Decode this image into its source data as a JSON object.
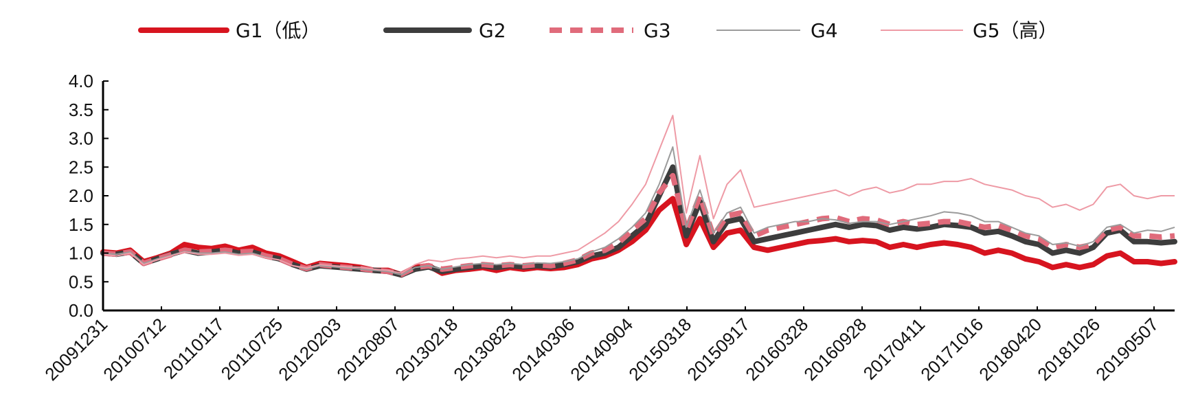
{
  "chart_data": {
    "type": "line",
    "title": "",
    "xlabel": "",
    "ylabel": "",
    "ylim": [
      0,
      4
    ],
    "yticks": [
      "0.0",
      "0.5",
      "1.0",
      "1.5",
      "2.0",
      "2.5",
      "3.0",
      "3.5",
      "4.0"
    ],
    "xticks": [
      "20091231",
      "20100712",
      "20110117",
      "20110725",
      "20120203",
      "20120807",
      "20130218",
      "20130823",
      "20140306",
      "20140904",
      "20150318",
      "20150917",
      "20160328",
      "20160928",
      "20170411",
      "20171016",
      "20180420",
      "20181026",
      "20190507"
    ],
    "grid": false,
    "legend_position": "top",
    "series": [
      {
        "name": "G1（低）",
        "color": "#d7141f",
        "style": "thick-solid",
        "values": [
          1.02,
          1.0,
          1.05,
          0.85,
          0.92,
          1.0,
          1.15,
          1.1,
          1.08,
          1.12,
          1.05,
          1.1,
          1.0,
          0.95,
          0.85,
          0.75,
          0.82,
          0.8,
          0.78,
          0.75,
          0.7,
          0.7,
          0.62,
          0.75,
          0.78,
          0.65,
          0.7,
          0.72,
          0.75,
          0.7,
          0.75,
          0.72,
          0.75,
          0.73,
          0.75,
          0.8,
          0.9,
          0.95,
          1.05,
          1.2,
          1.4,
          1.75,
          1.95,
          1.15,
          1.6,
          1.1,
          1.35,
          1.4,
          1.1,
          1.05,
          1.1,
          1.15,
          1.2,
          1.22,
          1.25,
          1.2,
          1.22,
          1.2,
          1.1,
          1.15,
          1.1,
          1.15,
          1.18,
          1.15,
          1.1,
          1.0,
          1.05,
          1.0,
          0.9,
          0.85,
          0.75,
          0.8,
          0.75,
          0.8,
          0.95,
          1.0,
          0.85,
          0.85,
          0.82,
          0.85
        ]
      },
      {
        "name": "G2",
        "color": "#3d3d3d",
        "style": "thick-solid",
        "values": [
          1.0,
          0.98,
          1.02,
          0.82,
          0.9,
          0.98,
          1.05,
          1.0,
          1.02,
          1.05,
          1.0,
          1.02,
          0.95,
          0.9,
          0.8,
          0.72,
          0.78,
          0.76,
          0.74,
          0.72,
          0.7,
          0.68,
          0.62,
          0.72,
          0.76,
          0.68,
          0.72,
          0.75,
          0.78,
          0.75,
          0.78,
          0.76,
          0.78,
          0.76,
          0.8,
          0.85,
          0.95,
          1.0,
          1.1,
          1.3,
          1.5,
          2.0,
          2.5,
          1.3,
          1.9,
          1.2,
          1.55,
          1.6,
          1.2,
          1.25,
          1.3,
          1.35,
          1.4,
          1.45,
          1.5,
          1.45,
          1.5,
          1.48,
          1.4,
          1.45,
          1.42,
          1.45,
          1.5,
          1.48,
          1.45,
          1.35,
          1.38,
          1.3,
          1.2,
          1.15,
          1.0,
          1.05,
          1.0,
          1.1,
          1.35,
          1.4,
          1.2,
          1.2,
          1.18,
          1.2
        ]
      },
      {
        "name": "G3",
        "color": "#e06b7b",
        "style": "thick-dashed",
        "values": [
          1.0,
          0.98,
          1.02,
          0.82,
          0.9,
          0.97,
          1.05,
          1.02,
          1.03,
          1.05,
          1.02,
          1.03,
          0.95,
          0.9,
          0.8,
          0.73,
          0.8,
          0.77,
          0.75,
          0.73,
          0.7,
          0.68,
          0.63,
          0.75,
          0.78,
          0.72,
          0.75,
          0.78,
          0.8,
          0.78,
          0.8,
          0.78,
          0.8,
          0.78,
          0.82,
          0.88,
          1.0,
          1.05,
          1.18,
          1.4,
          1.6,
          2.05,
          2.35,
          1.4,
          2.0,
          1.3,
          1.65,
          1.7,
          1.3,
          1.4,
          1.45,
          1.5,
          1.55,
          1.6,
          1.62,
          1.55,
          1.6,
          1.58,
          1.5,
          1.55,
          1.5,
          1.52,
          1.55,
          1.55,
          1.5,
          1.45,
          1.48,
          1.4,
          1.3,
          1.25,
          1.1,
          1.15,
          1.1,
          1.15,
          1.4,
          1.45,
          1.3,
          1.3,
          1.28,
          1.3
        ]
      },
      {
        "name": "G4",
        "color": "#9b9b9b",
        "style": "thin-solid",
        "values": [
          1.0,
          0.98,
          1.02,
          0.82,
          0.9,
          0.96,
          1.03,
          1.0,
          1.0,
          1.02,
          0.98,
          1.0,
          0.93,
          0.88,
          0.78,
          0.72,
          0.78,
          0.76,
          0.74,
          0.72,
          0.7,
          0.68,
          0.62,
          0.75,
          0.78,
          0.72,
          0.76,
          0.8,
          0.82,
          0.8,
          0.82,
          0.8,
          0.83,
          0.82,
          0.85,
          0.9,
          1.02,
          1.1,
          1.25,
          1.45,
          1.7,
          2.2,
          2.85,
          1.45,
          2.1,
          1.35,
          1.7,
          1.8,
          1.35,
          1.45,
          1.5,
          1.55,
          1.55,
          1.6,
          1.58,
          1.52,
          1.55,
          1.55,
          1.5,
          1.55,
          1.6,
          1.65,
          1.72,
          1.7,
          1.65,
          1.55,
          1.55,
          1.45,
          1.35,
          1.3,
          1.15,
          1.18,
          1.12,
          1.2,
          1.45,
          1.5,
          1.35,
          1.4,
          1.38,
          1.45
        ]
      },
      {
        "name": "G5（高）",
        "color": "#ee9aa5",
        "style": "thin-solid",
        "values": [
          0.98,
          0.95,
          1.0,
          0.8,
          0.88,
          0.95,
          1.02,
          0.98,
          0.98,
          1.0,
          0.96,
          0.98,
          0.92,
          0.88,
          0.78,
          0.74,
          0.8,
          0.78,
          0.76,
          0.75,
          0.72,
          0.7,
          0.65,
          0.8,
          0.88,
          0.85,
          0.9,
          0.92,
          0.95,
          0.92,
          0.95,
          0.92,
          0.95,
          0.95,
          1.0,
          1.05,
          1.2,
          1.35,
          1.55,
          1.85,
          2.2,
          2.8,
          3.4,
          1.7,
          2.7,
          1.6,
          2.2,
          2.45,
          1.8,
          1.85,
          1.9,
          1.95,
          2.0,
          2.05,
          2.1,
          2.0,
          2.1,
          2.15,
          2.05,
          2.1,
          2.2,
          2.2,
          2.25,
          2.25,
          2.3,
          2.2,
          2.15,
          2.1,
          2.0,
          1.95,
          1.8,
          1.85,
          1.75,
          1.85,
          2.15,
          2.2,
          2.0,
          1.95,
          2.0,
          2.0
        ]
      }
    ]
  }
}
